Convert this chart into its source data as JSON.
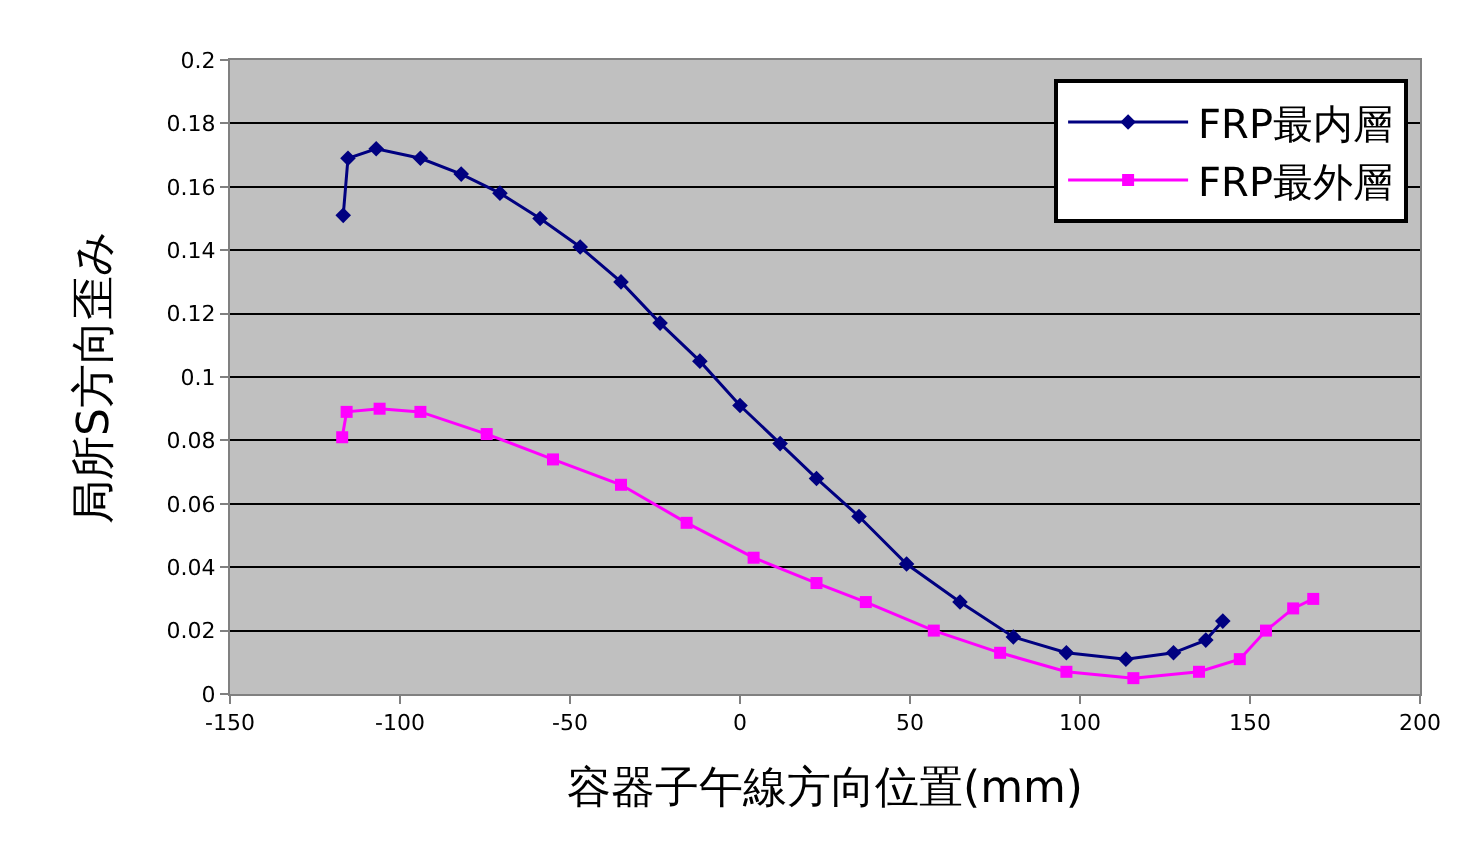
{
  "chart_data": {
    "type": "line",
    "xlabel": "容器子午線方向位置(mm)",
    "ylabel": "局所S方向歪み",
    "xlim": [
      -150,
      200
    ],
    "xticks": [
      -150,
      -100,
      -50,
      0,
      50,
      100,
      150,
      200
    ],
    "ylim": [
      0,
      0.2
    ],
    "yticks": [
      0,
      0.02,
      0.04,
      0.06,
      0.08,
      0.1,
      0.12,
      0.14,
      0.16,
      0.18,
      0.2
    ],
    "grid": "y",
    "legend": "top right",
    "line_style": "solid",
    "series": [
      {
        "name": "FRP最内層",
        "color": "#000080",
        "marker": "diamond",
        "x": [
          -116.7,
          -115.3,
          -107,
          -94,
          -82,
          -70.6,
          -58.8,
          -47,
          -35,
          -23.5,
          -11.8,
          0,
          11.8,
          22.5,
          35,
          49,
          64.7,
          80.4,
          96,
          113.5,
          127.5,
          137,
          142
        ],
        "values": [
          0.151,
          0.169,
          0.172,
          0.169,
          0.164,
          0.158,
          0.15,
          0.141,
          0.13,
          0.117,
          0.105,
          0.091,
          0.079,
          0.068,
          0.056,
          0.041,
          0.029,
          0.018,
          0.013,
          0.011,
          0.013,
          0.017,
          0.023
        ]
      },
      {
        "name": "FRP最外層",
        "color": "#ff00ff",
        "marker": "square",
        "x": [
          -117,
          -115.7,
          -106,
          -94,
          -74.5,
          -55,
          -35,
          -15.7,
          4,
          22.5,
          37,
          57,
          76.5,
          96,
          115.7,
          135,
          147,
          154.7,
          162.7,
          168.6
        ],
        "values": [
          0.081,
          0.089,
          0.09,
          0.089,
          0.082,
          0.074,
          0.066,
          0.054,
          0.043,
          0.035,
          0.029,
          0.02,
          0.013,
          0.007,
          0.005,
          0.007,
          0.011,
          0.02,
          0.027,
          0.03
        ]
      }
    ]
  }
}
